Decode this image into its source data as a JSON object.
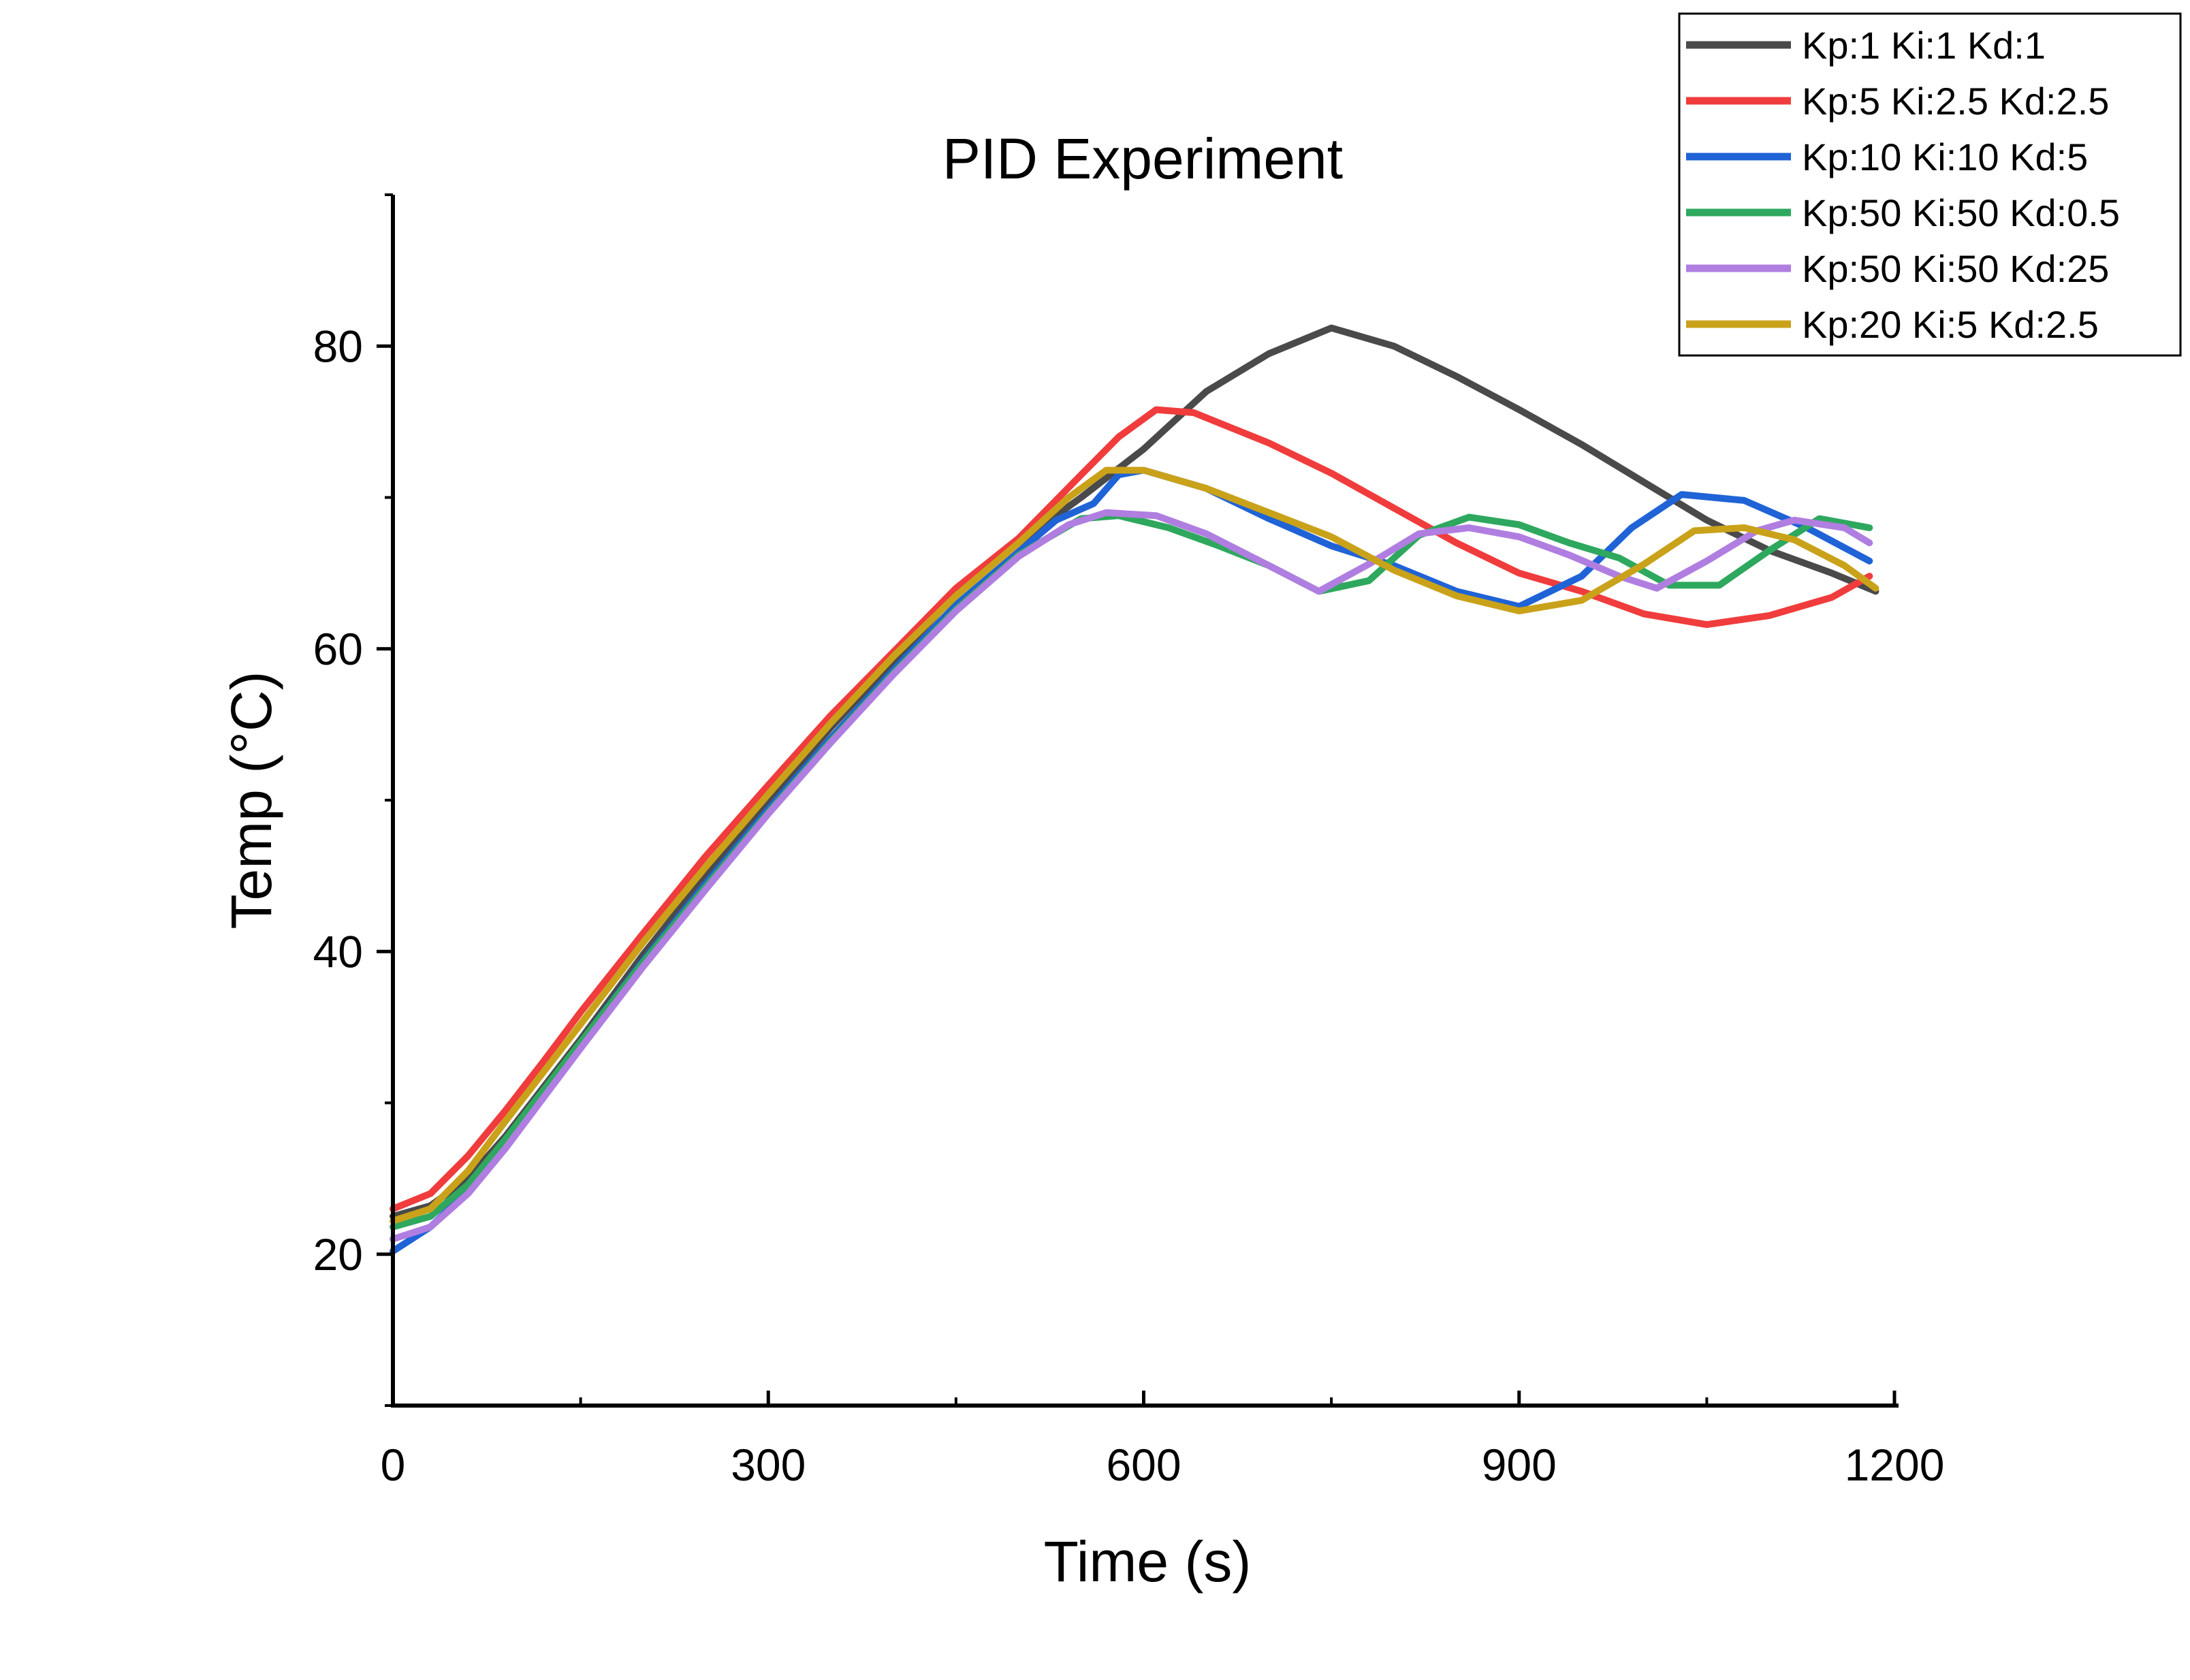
{
  "chart_data": {
    "type": "line",
    "title": "PID Experiment",
    "xlabel": "Time (s)",
    "ylabel": "Temp (°C)",
    "xlim": [
      0,
      1200
    ],
    "ylim": [
      10,
      90
    ],
    "x_ticks": [
      0,
      300,
      600,
      900,
      1200
    ],
    "y_ticks": [
      20,
      40,
      60,
      80
    ],
    "grid": false,
    "legend_position": "top-right",
    "series": [
      {
        "name": "Kp:1 Ki:1 Kd:1",
        "color": "#4a4a4a",
        "points": [
          [
            0,
            22.5
          ],
          [
            30,
            23.2
          ],
          [
            60,
            25
          ],
          [
            90,
            27.8
          ],
          [
            120,
            31
          ],
          [
            150,
            34.2
          ],
          [
            200,
            39.8
          ],
          [
            250,
            45
          ],
          [
            300,
            50
          ],
          [
            350,
            54.8
          ],
          [
            400,
            59.2
          ],
          [
            450,
            63.6
          ],
          [
            500,
            67
          ],
          [
            550,
            70
          ],
          [
            600,
            73.2
          ],
          [
            650,
            77
          ],
          [
            700,
            79.5
          ],
          [
            750,
            81.2
          ],
          [
            800,
            80
          ],
          [
            850,
            78
          ],
          [
            900,
            75.8
          ],
          [
            950,
            73.5
          ],
          [
            1000,
            71
          ],
          [
            1050,
            68.5
          ],
          [
            1100,
            66.5
          ],
          [
            1150,
            65
          ],
          [
            1185,
            63.8
          ]
        ]
      },
      {
        "name": "Kp:5 Ki:2.5 Kd:2.5",
        "color": "#f03c3c",
        "points": [
          [
            0,
            23
          ],
          [
            30,
            24
          ],
          [
            60,
            26.5
          ],
          [
            90,
            29.5
          ],
          [
            120,
            32.7
          ],
          [
            150,
            36
          ],
          [
            200,
            41.2
          ],
          [
            250,
            46.3
          ],
          [
            300,
            51
          ],
          [
            350,
            55.6
          ],
          [
            400,
            59.8
          ],
          [
            450,
            64
          ],
          [
            500,
            67.3
          ],
          [
            550,
            71.5
          ],
          [
            580,
            74
          ],
          [
            610,
            75.8
          ],
          [
            640,
            75.6
          ],
          [
            700,
            73.6
          ],
          [
            750,
            71.6
          ],
          [
            800,
            69.3
          ],
          [
            850,
            67
          ],
          [
            900,
            65
          ],
          [
            950,
            63.8
          ],
          [
            1000,
            62.3
          ],
          [
            1050,
            61.6
          ],
          [
            1100,
            62.2
          ],
          [
            1150,
            63.4
          ],
          [
            1180,
            64.8
          ]
        ]
      },
      {
        "name": "Kp:10 Ki:10 Kd:5",
        "color": "#1f63d6",
        "points": [
          [
            0,
            20.2
          ],
          [
            30,
            21.8
          ],
          [
            60,
            24.2
          ],
          [
            90,
            27.4
          ],
          [
            120,
            30.7
          ],
          [
            150,
            34
          ],
          [
            200,
            39.4
          ],
          [
            250,
            44.5
          ],
          [
            300,
            49.4
          ],
          [
            350,
            54.1
          ],
          [
            400,
            58.6
          ],
          [
            450,
            62.9
          ],
          [
            500,
            66.4
          ],
          [
            530,
            68.5
          ],
          [
            560,
            69.6
          ],
          [
            580,
            71.5
          ],
          [
            600,
            71.8
          ],
          [
            650,
            70.6
          ],
          [
            700,
            68.6
          ],
          [
            750,
            66.8
          ],
          [
            800,
            65.5
          ],
          [
            850,
            63.8
          ],
          [
            900,
            62.8
          ],
          [
            950,
            64.8
          ],
          [
            990,
            68
          ],
          [
            1030,
            70.2
          ],
          [
            1080,
            69.8
          ],
          [
            1130,
            68
          ],
          [
            1180,
            65.8
          ]
        ]
      },
      {
        "name": "Kp:50 Ki:50 Kd:0.5",
        "color": "#2ea85e",
        "points": [
          [
            0,
            21.8
          ],
          [
            30,
            22.5
          ],
          [
            60,
            24.6
          ],
          [
            90,
            27.6
          ],
          [
            120,
            30.8
          ],
          [
            150,
            34
          ],
          [
            200,
            39.3
          ],
          [
            250,
            44.3
          ],
          [
            300,
            49.2
          ],
          [
            350,
            53.9
          ],
          [
            400,
            58.4
          ],
          [
            450,
            62.6
          ],
          [
            500,
            66.2
          ],
          [
            550,
            68.6
          ],
          [
            580,
            68.8
          ],
          [
            620,
            68
          ],
          [
            660,
            66.8
          ],
          [
            700,
            65.5
          ],
          [
            740,
            63.8
          ],
          [
            780,
            64.5
          ],
          [
            820,
            67.5
          ],
          [
            860,
            68.7
          ],
          [
            900,
            68.2
          ],
          [
            940,
            67
          ],
          [
            980,
            66
          ],
          [
            1020,
            64.2
          ],
          [
            1060,
            64.2
          ],
          [
            1100,
            66.5
          ],
          [
            1140,
            68.6
          ],
          [
            1180,
            68
          ]
        ]
      },
      {
        "name": "Kp:50 Ki:50 Kd:25",
        "color": "#b07ee0",
        "points": [
          [
            0,
            21
          ],
          [
            30,
            21.8
          ],
          [
            60,
            24
          ],
          [
            90,
            27
          ],
          [
            120,
            30.3
          ],
          [
            150,
            33.6
          ],
          [
            200,
            39
          ],
          [
            250,
            44.1
          ],
          [
            300,
            49.1
          ],
          [
            350,
            53.8
          ],
          [
            400,
            58.3
          ],
          [
            450,
            62.5
          ],
          [
            500,
            66.1
          ],
          [
            540,
            68.2
          ],
          [
            570,
            69
          ],
          [
            610,
            68.8
          ],
          [
            650,
            67.6
          ],
          [
            700,
            65.5
          ],
          [
            740,
            63.8
          ],
          [
            780,
            65.6
          ],
          [
            820,
            67.6
          ],
          [
            860,
            68
          ],
          [
            900,
            67.4
          ],
          [
            940,
            66.2
          ],
          [
            980,
            64.8
          ],
          [
            1010,
            64
          ],
          [
            1050,
            65.8
          ],
          [
            1090,
            67.8
          ],
          [
            1120,
            68.5
          ],
          [
            1160,
            68
          ],
          [
            1180,
            67
          ]
        ]
      },
      {
        "name": "Kp:20 Ki:5 Kd:2.5",
        "color": "#c9a21a",
        "points": [
          [
            0,
            22.2
          ],
          [
            30,
            23
          ],
          [
            60,
            25.5
          ],
          [
            90,
            28.8
          ],
          [
            120,
            32
          ],
          [
            150,
            35.2
          ],
          [
            200,
            40.6
          ],
          [
            250,
            45.6
          ],
          [
            300,
            50.4
          ],
          [
            350,
            55.1
          ],
          [
            400,
            59.5
          ],
          [
            450,
            63.5
          ],
          [
            500,
            67
          ],
          [
            540,
            70
          ],
          [
            570,
            71.8
          ],
          [
            600,
            71.8
          ],
          [
            650,
            70.6
          ],
          [
            700,
            69
          ],
          [
            750,
            67.4
          ],
          [
            800,
            65.2
          ],
          [
            850,
            63.5
          ],
          [
            900,
            62.5
          ],
          [
            950,
            63.2
          ],
          [
            1000,
            65.6
          ],
          [
            1040,
            67.8
          ],
          [
            1080,
            68
          ],
          [
            1120,
            67.2
          ],
          [
            1160,
            65.5
          ],
          [
            1185,
            64
          ]
        ]
      }
    ]
  }
}
